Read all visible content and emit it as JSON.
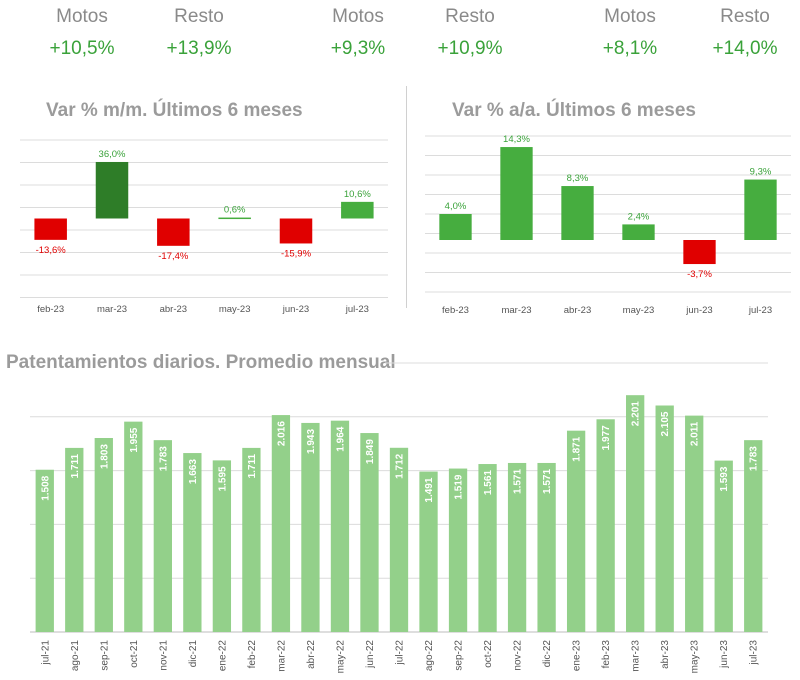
{
  "kpis": [
    {
      "label": "Motos",
      "value": "+10,5%"
    },
    {
      "label": "Resto",
      "value": "+13,9%"
    },
    {
      "label": "Motos",
      "value": "+9,3%"
    },
    {
      "label": "Resto",
      "value": "+10,9%"
    },
    {
      "label": "Motos",
      "value": "+8,1%"
    },
    {
      "label": "Resto",
      "value": "+14,0%"
    }
  ],
  "colors": {
    "positive": "#46ad3f",
    "positive_dark": "#2e7d28",
    "negative": "#e00000",
    "daily_bar": "#93d08a",
    "grid": "#dcdcdc",
    "title": "#9b9b9b"
  },
  "chart_data": [
    {
      "type": "bar",
      "title": "Var % m/m. Últimos 6 meses",
      "categories": [
        "feb-23",
        "mar-23",
        "abr-23",
        "may-23",
        "jun-23",
        "jul-23"
      ],
      "values": [
        -13.6,
        36.0,
        -17.4,
        0.6,
        -15.9,
        10.6
      ],
      "labels": [
        "-13,6%",
        "36,0%",
        "-17,4%",
        "0,6%",
        "-15,9%",
        "10,6%"
      ],
      "highlight_index": 1,
      "grid": true
    },
    {
      "type": "bar",
      "title": "Var % a/a. Últimos 6 meses",
      "categories": [
        "feb-23",
        "mar-23",
        "abr-23",
        "may-23",
        "jun-23",
        "jul-23"
      ],
      "values": [
        4.0,
        14.3,
        8.3,
        2.4,
        -3.7,
        9.3
      ],
      "labels": [
        "4,0%",
        "14,3%",
        "8,3%",
        "2,4%",
        "-3,7%",
        "9,3%"
      ],
      "grid": true
    },
    {
      "type": "bar",
      "title": "Patentamientos diarios. Promedio mensual",
      "categories": [
        "jul-21",
        "ago-21",
        "sep-21",
        "oct-21",
        "nov-21",
        "dic-21",
        "ene-22",
        "feb-22",
        "mar-22",
        "abr-22",
        "may-22",
        "jun-22",
        "jul-22",
        "ago-22",
        "sep-22",
        "oct-22",
        "nov-22",
        "dic-22",
        "ene-23",
        "feb-23",
        "mar-23",
        "abr-23",
        "may-23",
        "jun-23",
        "jul-23"
      ],
      "values": [
        1508,
        1711,
        1803,
        1955,
        1783,
        1663,
        1595,
        1711,
        2016,
        1943,
        1964,
        1849,
        1712,
        1491,
        1519,
        1561,
        1571,
        1571,
        1871,
        1977,
        2201,
        2105,
        2011,
        1593,
        1783
      ],
      "labels": [
        "1.508",
        "1.711",
        "1.803",
        "1.955",
        "1.783",
        "1.663",
        "1.595",
        "1.711",
        "2.016",
        "1.943",
        "1.964",
        "1.849",
        "1.712",
        "1.491",
        "1.519",
        "1.561",
        "1.571",
        "1.571",
        "1.871",
        "1.977",
        "2.201",
        "2.105",
        "2.011",
        "1.593",
        "1.783"
      ],
      "grid": true
    }
  ]
}
